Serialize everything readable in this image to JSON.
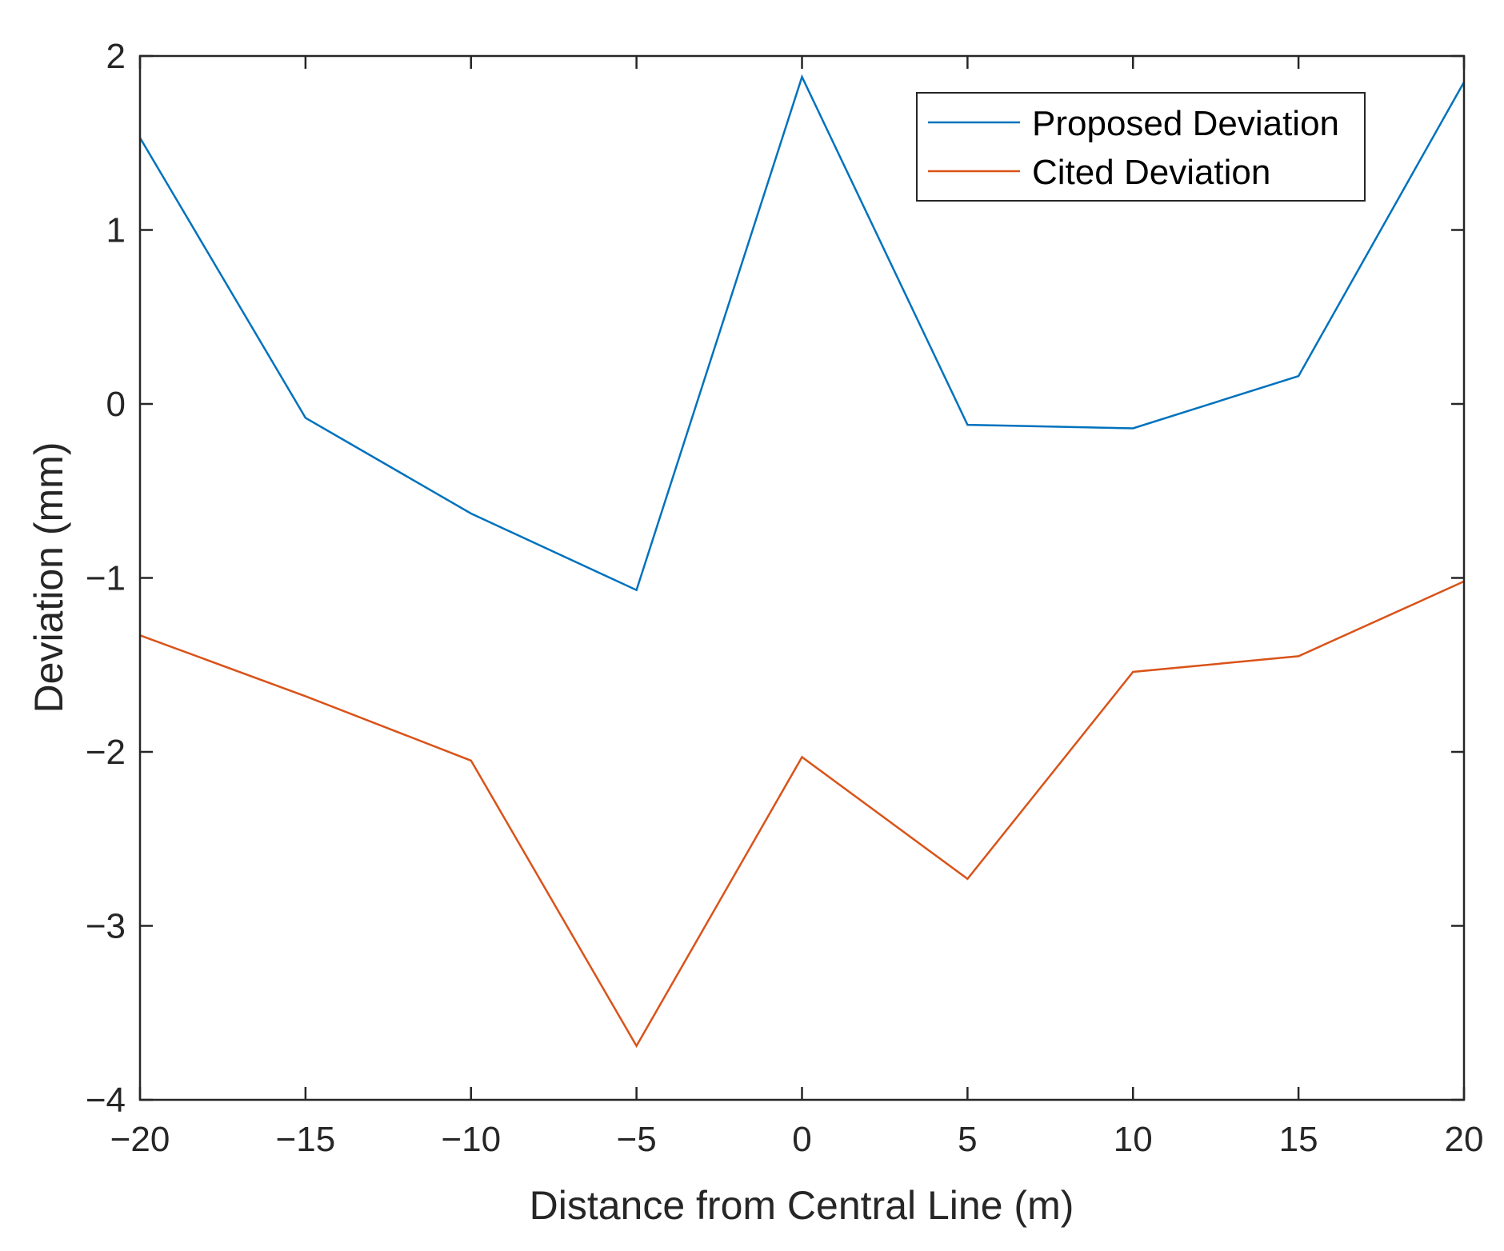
{
  "chart_data": {
    "type": "line",
    "title": "",
    "xlabel": "Distance from Central Line (m)",
    "ylabel": "Deviation (mm)",
    "xlim": [
      -20,
      20
    ],
    "ylim": [
      -4,
      2
    ],
    "xticks": [
      -20,
      -15,
      -10,
      -5,
      0,
      5,
      10,
      15,
      20
    ],
    "xtick_labels": [
      "−20",
      "−15",
      "−10",
      "−5",
      "0",
      "5",
      "10",
      "15",
      "20"
    ],
    "yticks": [
      -4,
      -3,
      -2,
      -1,
      0,
      1,
      2
    ],
    "ytick_labels": [
      "−4",
      "−3",
      "−2",
      "−1",
      "0",
      "1",
      "2"
    ],
    "grid": false,
    "legend_position": "top-right",
    "x": [
      -20,
      -15,
      -10,
      -5,
      0,
      5,
      10,
      15,
      20
    ],
    "series": [
      {
        "name": "Proposed Deviation",
        "color": "#0072BD",
        "values": [
          1.53,
          -0.08,
          -0.63,
          -1.07,
          1.88,
          -0.12,
          -0.14,
          0.16,
          1.85
        ]
      },
      {
        "name": "Cited Deviation",
        "color": "#D95319",
        "values": [
          -1.33,
          -1.68,
          -2.05,
          -3.69,
          -2.03,
          -2.73,
          -1.54,
          -1.45,
          -1.02
        ]
      }
    ]
  }
}
